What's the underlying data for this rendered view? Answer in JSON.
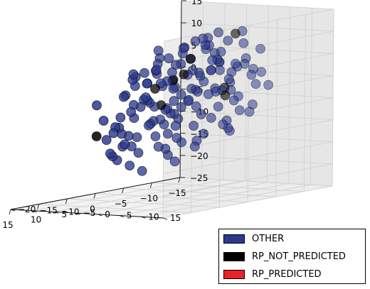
{
  "chart_data": {
    "type": "scatter",
    "projection": "3d",
    "grid": true,
    "legend_position": "bottom-right",
    "xlabel": "",
    "ylabel": "",
    "zlabel": "",
    "xlim": [
      -15,
      15
    ],
    "ylim": [
      -20,
      15
    ],
    "zlim": [
      -25,
      15
    ],
    "x_ticks": [
      "−15",
      "−10",
      "−5",
      "0",
      "5",
      "10",
      "15"
    ],
    "y_ticks": [
      "−20",
      "−15",
      "−10",
      "−5",
      "0",
      "5",
      "10",
      "15"
    ],
    "z_ticks": [
      "−25",
      "−20",
      "−15",
      "−10",
      "−5",
      "0",
      "5",
      "10",
      "15"
    ],
    "colors": {
      "OTHER": "#2b3990",
      "RP_NOT_PREDICTED": "#000000",
      "RP_PREDICTED": "#e8232a"
    },
    "legend": [
      {
        "label": "OTHER",
        "color": "#2b3990"
      },
      {
        "label": "RP_NOT_PREDICTED",
        "color": "#000000"
      },
      {
        "label": "RP_PREDICTED",
        "color": "#e8232a"
      }
    ],
    "series": [
      {
        "name": "OTHER",
        "points": [
          [
            -11.5,
            3,
            1
          ],
          [
            -9,
            4,
            1
          ],
          [
            -8,
            2,
            3
          ],
          [
            -10,
            -2,
            -3
          ],
          [
            -9,
            0,
            -5
          ],
          [
            -8.5,
            2,
            -7
          ],
          [
            -7,
            5,
            4
          ],
          [
            -6,
            3,
            0
          ],
          [
            -5,
            1,
            -2
          ],
          [
            -4,
            3,
            5
          ],
          [
            -3,
            0,
            2
          ],
          [
            -2,
            4,
            6
          ],
          [
            -1,
            2,
            -1
          ],
          [
            0,
            1,
            3
          ],
          [
            1,
            3,
            7
          ],
          [
            2,
            0,
            4
          ],
          [
            3,
            2,
            1
          ],
          [
            4,
            -1,
            5
          ],
          [
            5,
            1,
            8
          ],
          [
            6,
            3,
            2
          ],
          [
            7,
            0,
            -1
          ],
          [
            8,
            2,
            3
          ],
          [
            9,
            -2,
            0
          ],
          [
            10,
            1,
            -3
          ],
          [
            11,
            3,
            -4
          ],
          [
            12,
            0,
            -6
          ],
          [
            10,
            -3,
            -8
          ],
          [
            8,
            -4,
            -5
          ],
          [
            6,
            -2,
            -3
          ],
          [
            4,
            -3,
            -2
          ],
          [
            2,
            -4,
            -4
          ],
          [
            0,
            -2,
            -6
          ],
          [
            -2,
            -3,
            -5
          ],
          [
            -4,
            -1,
            -7
          ],
          [
            -6,
            -2,
            -3
          ],
          [
            -7,
            1,
            -9
          ],
          [
            -5,
            -4,
            -10
          ],
          [
            -3,
            -5,
            -8
          ],
          [
            -1,
            -3,
            -9
          ],
          [
            1,
            -5,
            -11
          ],
          [
            3,
            -4,
            -8
          ],
          [
            5,
            -6,
            -10
          ],
          [
            7,
            -5,
            -9
          ],
          [
            9,
            -3,
            -7
          ],
          [
            11,
            -4,
            -5
          ],
          [
            -8,
            4,
            5
          ],
          [
            -6,
            6,
            9
          ],
          [
            -4,
            5,
            10
          ],
          [
            -2,
            6,
            8
          ],
          [
            0,
            5,
            10
          ],
          [
            2,
            7,
            12
          ],
          [
            4,
            5,
            9
          ],
          [
            6,
            6,
            7
          ],
          [
            8,
            4,
            6
          ],
          [
            -3,
            2,
            9
          ],
          [
            1,
            4,
            11
          ],
          [
            3,
            6,
            5
          ],
          [
            5,
            4,
            3
          ],
          [
            -1,
            5,
            4
          ],
          [
            7,
            3,
            5
          ],
          [
            -7,
            2,
            2
          ],
          [
            -5,
            4,
            1
          ],
          [
            -3,
            5,
            -1
          ],
          [
            -1,
            6,
            0
          ],
          [
            1,
            6,
            2
          ],
          [
            3,
            5,
            -2
          ],
          [
            5,
            6,
            0
          ],
          [
            7,
            5,
            -3
          ],
          [
            9,
            4,
            -1
          ],
          [
            -9,
            1,
            -4
          ],
          [
            -7,
            -1,
            -6
          ],
          [
            -5,
            0,
            -8
          ],
          [
            -3,
            -2,
            -1
          ],
          [
            -1,
            0,
            -3
          ],
          [
            1,
            -1,
            0
          ],
          [
            3,
            1,
            -5
          ],
          [
            5,
            -1,
            -7
          ],
          [
            7,
            -2,
            2
          ],
          [
            9,
            0,
            4
          ],
          [
            11,
            1,
            1
          ],
          [
            -8,
            -2,
            2
          ],
          [
            -6,
            0,
            5
          ],
          [
            -4,
            2,
            7
          ],
          [
            -2,
            1,
            3
          ],
          [
            0,
            3,
            -4
          ],
          [
            2,
            2,
            6
          ],
          [
            4,
            0,
            2
          ],
          [
            6,
            1,
            -6
          ],
          [
            8,
            -1,
            -2
          ],
          [
            10,
            2,
            5
          ],
          [
            -10,
            3,
            -6
          ],
          [
            -9,
            5,
            -1
          ],
          [
            -8,
            0,
            -11
          ],
          [
            -6,
            -3,
            -12
          ],
          [
            -4,
            -2,
            -13
          ],
          [
            -2,
            -4,
            -12
          ],
          [
            0,
            -4,
            -14
          ],
          [
            2,
            -3,
            -13
          ],
          [
            4,
            -5,
            -14
          ],
          [
            6,
            -4,
            -12
          ],
          [
            8,
            -3,
            -11
          ],
          [
            -6,
            -5,
            -15
          ],
          [
            -2,
            -6,
            -16
          ],
          [
            4,
            -7,
            -17
          ],
          [
            7,
            -6,
            -15
          ],
          [
            1,
            -8,
            -19
          ],
          [
            -4,
            -7,
            -18
          ],
          [
            9,
            8,
            -2
          ],
          [
            12,
            5,
            -8
          ],
          [
            13,
            3,
            -10
          ],
          [
            -11,
            1,
            -8
          ],
          [
            -12,
            4,
            -2
          ],
          [
            6,
            8,
            11
          ],
          [
            -5,
            7,
            12
          ],
          [
            0,
            8,
            13
          ],
          [
            3,
            9,
            10
          ],
          [
            8,
            7,
            9
          ],
          [
            11,
            6,
            4
          ],
          [
            -9,
            6,
            7
          ],
          [
            2,
            -6,
            -2
          ],
          [
            -1,
            -5,
            1
          ],
          [
            5,
            -5,
            4
          ],
          [
            -3,
            -6,
            -4
          ],
          [
            12,
            -2,
            -9
          ],
          [
            10,
            4,
            6
          ],
          [
            -7,
            7,
            3
          ],
          [
            3,
            -2,
            6
          ],
          [
            -2,
            3,
            11
          ],
          [
            6,
            2,
            10
          ],
          [
            -4,
            4,
            -9
          ],
          [
            1,
            1,
            -12
          ],
          [
            8,
            6,
            -6
          ],
          [
            4,
            8,
            1
          ],
          [
            -6,
            3,
            -11
          ],
          [
            2,
            9,
            5
          ],
          [
            14,
            2,
            -12
          ],
          [
            11,
            9,
            -4
          ],
          [
            -10,
            -1,
            3
          ],
          [
            13,
            -3,
            -1
          ],
          [
            5,
            3,
            -9
          ],
          [
            -1,
            7,
            6
          ],
          [
            0,
            0,
            9
          ],
          [
            9,
            -5,
            -13
          ]
        ]
      },
      {
        "name": "RP_NOT_PREDICTED",
        "points": [
          [
            -3,
            8,
            12
          ],
          [
            -5,
            3,
            -1
          ],
          [
            1,
            -1,
            2
          ],
          [
            3,
            4,
            4
          ],
          [
            13,
            -3,
            -8
          ],
          [
            -9,
            -2,
            -4
          ],
          [
            5,
            0,
            1
          ],
          [
            -2,
            -1,
            6
          ],
          [
            7,
            4,
            -2
          ]
        ]
      },
      {
        "name": "RP_PREDICTED",
        "points": []
      }
    ]
  }
}
